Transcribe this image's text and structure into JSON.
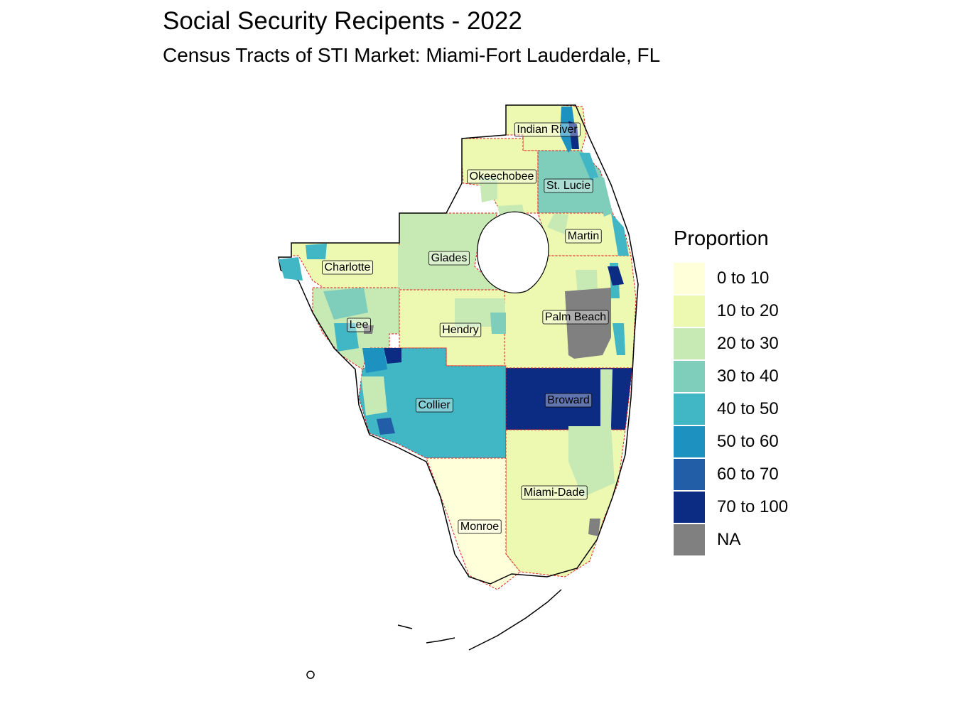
{
  "title": "Social Security Recipents - 2022",
  "subtitle": "Census Tracts of STI Market: Miami-Fort Lauderdale, FL",
  "legend": {
    "title": "Proportion",
    "items": [
      {
        "label": "0 to 10",
        "color": "#ffffd9"
      },
      {
        "label": "10 to 20",
        "color": "#edf8b1"
      },
      {
        "label": "20 to 30",
        "color": "#c7e9b4"
      },
      {
        "label": "30 to 40",
        "color": "#7fcdbb"
      },
      {
        "label": "40 to 50",
        "color": "#41b6c4"
      },
      {
        "label": "50 to 60",
        "color": "#1d91c0"
      },
      {
        "label": "60 to 70",
        "color": "#225ea8"
      },
      {
        "label": "70 to 100",
        "color": "#0c2c84"
      },
      {
        "label": "NA",
        "color": "#808080"
      }
    ]
  },
  "counties": [
    {
      "name": "Indian River",
      "category": "10 to 20"
    },
    {
      "name": "Okeechobee",
      "category": "10 to 20"
    },
    {
      "name": "St. Lucie",
      "category": "30 to 40"
    },
    {
      "name": "Martin",
      "category": "10 to 20"
    },
    {
      "name": "Charlotte",
      "category": "10 to 20"
    },
    {
      "name": "Glades",
      "category": "20 to 30"
    },
    {
      "name": "Lee",
      "category": "20 to 30"
    },
    {
      "name": "Hendry",
      "category": "10 to 20"
    },
    {
      "name": "Palm Beach",
      "category": "10 to 20"
    },
    {
      "name": "Collier",
      "category": "40 to 50"
    },
    {
      "name": "Broward",
      "category": "70 to 100"
    },
    {
      "name": "Miami-Dade",
      "category": "10 to 20"
    },
    {
      "name": "Monroe",
      "category": "0 to 10"
    }
  ]
}
